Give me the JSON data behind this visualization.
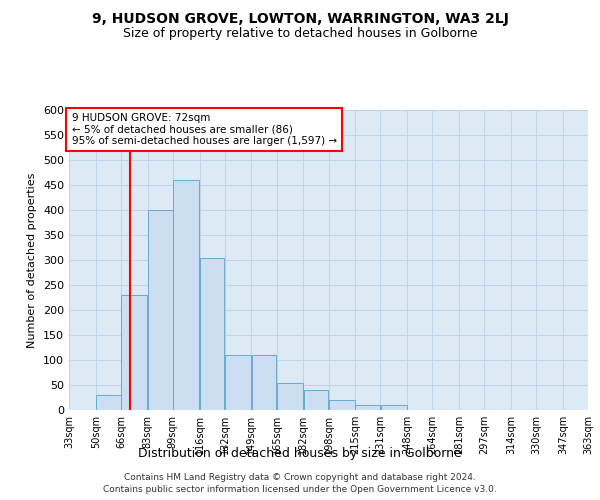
{
  "title": "9, HUDSON GROVE, LOWTON, WARRINGTON, WA3 2LJ",
  "subtitle": "Size of property relative to detached houses in Golborne",
  "xlabel": "Distribution of detached houses by size in Golborne",
  "ylabel": "Number of detached properties",
  "footer_line1": "Contains HM Land Registry data © Crown copyright and database right 2024.",
  "footer_line2": "Contains public sector information licensed under the Open Government Licence v3.0.",
  "annotation_line1": "9 HUDSON GROVE: 72sqm",
  "annotation_line2": "← 5% of detached houses are smaller (86)",
  "annotation_line3": "95% of semi-detached houses are larger (1,597) →",
  "bar_color": "#ccdff2",
  "bar_edge_color": "#6aaad4",
  "red_line_x": 72,
  "bin_edges": [
    33,
    50,
    66,
    83,
    99,
    116,
    132,
    149,
    165,
    182,
    198,
    215,
    231,
    248,
    264,
    281,
    297,
    314,
    330,
    347,
    363
  ],
  "bar_heights": [
    1,
    30,
    230,
    400,
    460,
    305,
    110,
    110,
    55,
    40,
    20,
    10,
    10,
    1,
    0,
    0,
    0,
    0,
    1,
    0
  ],
  "ylim": [
    0,
    600
  ],
  "yticks": [
    0,
    50,
    100,
    150,
    200,
    250,
    300,
    350,
    400,
    450,
    500,
    550,
    600
  ],
  "grid_color": "#c0d4e8",
  "background_color": "#ddeaf6",
  "title_fontsize": 10,
  "subtitle_fontsize": 9
}
